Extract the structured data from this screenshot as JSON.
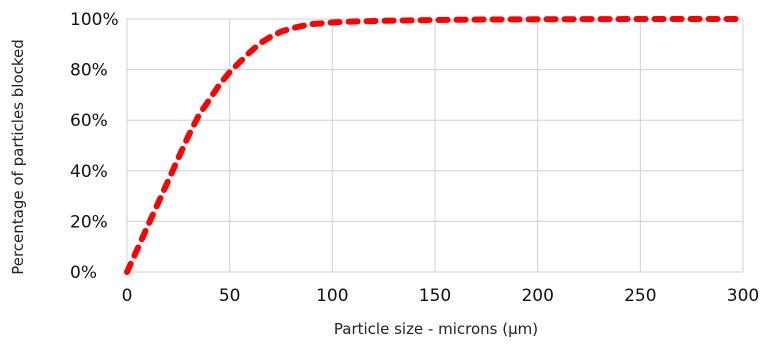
{
  "chart_data": {
    "type": "line",
    "xlabel": "Particle size - microns (µm)",
    "ylabel": "Percentage of particles blocked",
    "xlim": [
      0,
      300
    ],
    "ylim": [
      0,
      100
    ],
    "x_ticks": [
      0,
      50,
      100,
      150,
      200,
      250,
      300
    ],
    "x_tick_labels": [
      "0",
      "50",
      "100",
      "150",
      "200",
      "250",
      "300"
    ],
    "y_ticks": [
      0,
      20,
      40,
      60,
      80,
      100
    ],
    "y_tick_labels": [
      "0%",
      "20%",
      "40%",
      "60%",
      "80%",
      "100%"
    ],
    "grid": true,
    "legend": "none",
    "series": [
      {
        "color": "#ff0000",
        "line_style": "dashed",
        "points": [
          [
            0,
            0
          ],
          [
            5,
            9
          ],
          [
            10,
            18
          ],
          [
            15,
            27
          ],
          [
            20,
            36
          ],
          [
            25,
            45
          ],
          [
            30,
            54
          ],
          [
            35,
            62
          ],
          [
            40,
            68
          ],
          [
            45,
            74
          ],
          [
            50,
            79
          ],
          [
            55,
            83
          ],
          [
            60,
            87
          ],
          [
            65,
            90.5
          ],
          [
            70,
            93
          ],
          [
            75,
            95
          ],
          [
            80,
            96.3
          ],
          [
            85,
            97.2
          ],
          [
            90,
            98
          ],
          [
            100,
            98.6
          ],
          [
            110,
            99
          ],
          [
            125,
            99.3
          ],
          [
            150,
            99.6
          ],
          [
            175,
            99.8
          ],
          [
            200,
            99.9
          ],
          [
            250,
            100
          ],
          [
            300,
            100
          ]
        ]
      }
    ]
  }
}
